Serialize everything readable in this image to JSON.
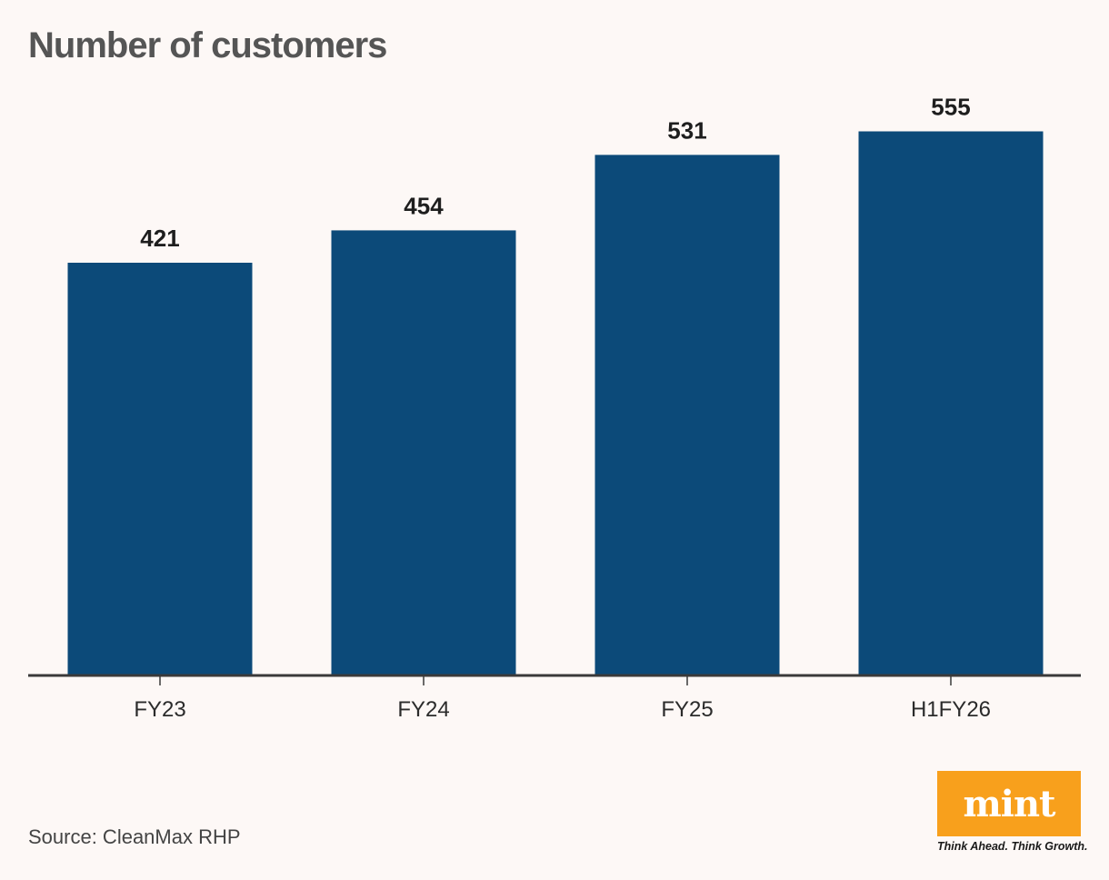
{
  "chart_data": {
    "type": "bar",
    "title": "Number of customers",
    "categories": [
      "FY23",
      "FY24",
      "FY25",
      "H1FY26"
    ],
    "values": [
      421,
      454,
      531,
      555
    ],
    "data_labels": [
      "421",
      "454",
      "531",
      "555"
    ],
    "xlabel": "",
    "ylabel": "",
    "ylim": [
      0,
      620
    ],
    "grid": false,
    "legend": "none",
    "bar_color": "#0c4a79"
  },
  "source": "Source: CleanMax RHP",
  "logo": {
    "word": "mint",
    "tagline": "Think Ahead. Think Growth.",
    "color": "#f8a01c"
  }
}
